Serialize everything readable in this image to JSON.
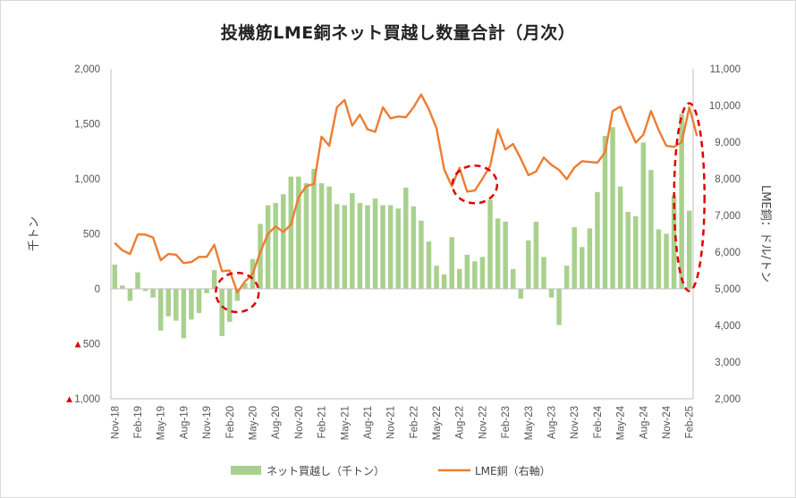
{
  "chart_data": {
    "type": "bar+line",
    "title": "投機筋LME銅ネット買越し数量合計（月次）",
    "y_left": {
      "label": "千トン",
      "ylim": [
        -1000,
        2000
      ],
      "ticks": [
        2000,
        1500,
        1000,
        500,
        0,
        -500,
        -1000
      ],
      "tick_labels": [
        "2,000",
        "1,500",
        "1,000",
        "500",
        "0",
        "▲500",
        "▲1,000"
      ]
    },
    "y_right": {
      "label": "LME銅：ドル/トン",
      "ylim": [
        2000,
        11000
      ],
      "ticks": [
        11000,
        10000,
        9000,
        8000,
        7000,
        6000,
        5000,
        4000,
        3000,
        2000
      ],
      "tick_labels": [
        "11,000",
        "10,000",
        "9,000",
        "8,000",
        "7,000",
        "6,000",
        "5,000",
        "4,000",
        "3,000",
        "2,000"
      ]
    },
    "x_tick_labels": [
      "Nov-18",
      "Feb-19",
      "May-19",
      "Aug-19",
      "Nov-19",
      "Feb-20",
      "May-20",
      "Aug-20",
      "Nov-20",
      "Feb-21",
      "May-21",
      "Aug-21",
      "Nov-21",
      "Feb-22",
      "May-22",
      "Aug-22",
      "Nov-22",
      "Feb-23",
      "May-23",
      "Aug-23",
      "Nov-23",
      "Feb-24",
      "May-24",
      "Aug-24",
      "Nov-24",
      "Feb-25"
    ],
    "series": [
      {
        "name": "ネット買越し（千トン）",
        "kind": "bar",
        "axis": "left",
        "color": "#a9d18e",
        "values": [
          220,
          30,
          -110,
          150,
          -20,
          -80,
          -380,
          -250,
          -290,
          -450,
          -280,
          -220,
          -40,
          170,
          -430,
          -300,
          -110,
          50,
          270,
          590,
          760,
          780,
          860,
          1020,
          1020,
          960,
          1090,
          960,
          930,
          770,
          760,
          870,
          780,
          760,
          820,
          760,
          760,
          730,
          920,
          750,
          620,
          430,
          210,
          130,
          470,
          180,
          310,
          250,
          290,
          810,
          640,
          610,
          180,
          -90,
          440,
          610,
          290,
          -80,
          -330,
          210,
          560,
          380,
          550,
          880,
          1390,
          1470,
          930,
          700,
          660,
          1330,
          1080,
          540,
          500,
          850,
          1590,
          710
        ]
      },
      {
        "name": "LME銅（右軸）",
        "kind": "line",
        "axis": "right",
        "color": "#ed7d31",
        "values": [
          6250,
          6050,
          5950,
          6480,
          6480,
          6400,
          5780,
          5950,
          5930,
          5700,
          5730,
          5870,
          5870,
          6200,
          5480,
          5500,
          4900,
          5200,
          5400,
          6000,
          6500,
          6700,
          6550,
          6750,
          7500,
          7800,
          7860,
          9150,
          8900,
          9950,
          10150,
          9450,
          9750,
          9350,
          9280,
          9950,
          9650,
          9700,
          9680,
          9950,
          10300,
          9900,
          9380,
          8260,
          7800,
          8300,
          7650,
          7680,
          8000,
          8350,
          9350,
          8800,
          8950,
          8550,
          8100,
          8200,
          8580,
          8380,
          8240,
          7990,
          8310,
          8480,
          8460,
          8440,
          8720,
          9850,
          9970,
          9450,
          8990,
          9200,
          9850,
          9330,
          8900,
          8870,
          9000,
          9950,
          9170
        ]
      }
    ],
    "legend": [
      "ネット買越し（千トン）",
      "LME銅（右軸）"
    ],
    "legend_position": "bottom",
    "grid": false
  }
}
